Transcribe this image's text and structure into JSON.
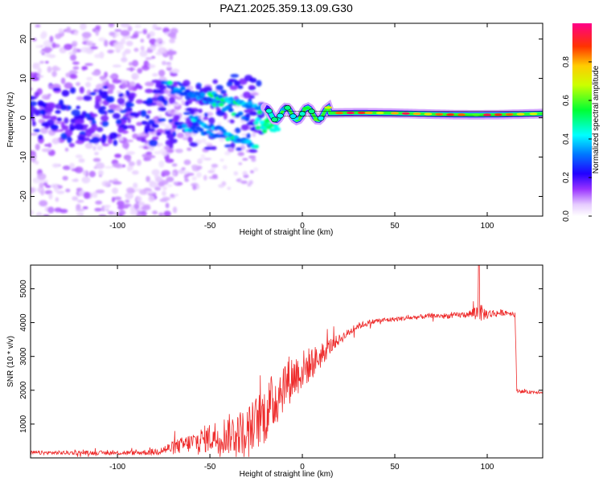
{
  "figure_title": "PAZ1.2025.359.13.09.G30",
  "colors": {
    "snr_line": "#ee2b2b",
    "axes": "#000000",
    "background": "#ffffff"
  },
  "chart_data": [
    {
      "type": "heatmap",
      "title": "PAZ1.2025.359.13.09.G30",
      "xlabel": "Height of straight line (km)",
      "ylabel": "Frequency (Hz)",
      "xlim": [
        -147,
        130
      ],
      "ylim": [
        -25,
        24
      ],
      "x_ticks": [
        -100,
        -50,
        0,
        50,
        100
      ],
      "y_ticks": [
        -20,
        -10,
        0,
        10,
        20
      ],
      "x_tick_labels": [
        "-100",
        "-50",
        "0",
        "50",
        "100"
      ],
      "y_tick_labels": [
        "-20",
        "-10",
        "0",
        "10",
        "20"
      ],
      "colorbar": {
        "label": "Normalized spectral amplitude",
        "range": [
          0,
          1
        ],
        "ticks": [
          0.0,
          0.2,
          0.4,
          0.6,
          0.8
        ],
        "tick_labels": [
          "0.0",
          "0.2",
          "0.4",
          "0.6",
          "0.8"
        ],
        "colormap": "rainbow (white-violet-blue-cyan-green-yellow-red-magenta)"
      },
      "features": [
        {
          "name": "scattered_noise",
          "x_range": [
            -147,
            -70
          ],
          "y_range": [
            -25,
            24
          ],
          "amplitude": 0.05
        },
        {
          "name": "converging_tracks",
          "x_range": [
            -70,
            -20
          ],
          "y_range": [
            -8,
            8
          ],
          "amplitude": 0.2
        },
        {
          "name": "main_carrier_line",
          "x_range": [
            -20,
            130
          ],
          "y_center": 1,
          "amplitude": 0.9
        }
      ]
    },
    {
      "type": "line",
      "xlabel": "Height of straight line (km)",
      "ylabel": "SNR (10 * v/v)",
      "xlim": [
        -147,
        130
      ],
      "ylim": [
        0,
        5700
      ],
      "x_ticks": [
        -100,
        -50,
        0,
        50,
        100
      ],
      "y_ticks": [
        1000,
        2000,
        3000,
        4000,
        5000
      ],
      "x_tick_labels": [
        "-100",
        "-50",
        "0",
        "50",
        "100"
      ],
      "y_tick_labels": [
        "1000",
        "2000",
        "3000",
        "4000",
        "5000"
      ],
      "series": [
        {
          "name": "SNR",
          "x": [
            -147,
            -130,
            -110,
            -90,
            -80,
            -70,
            -60,
            -50,
            -40,
            -30,
            -20,
            -15,
            -10,
            -5,
            0,
            5,
            10,
            15,
            20,
            25,
            30,
            40,
            50,
            60,
            70,
            80,
            90,
            95,
            100,
            110,
            115,
            116,
            120,
            130
          ],
          "values": [
            150,
            150,
            150,
            150,
            180,
            300,
            450,
            600,
            700,
            800,
            1300,
            1700,
            2200,
            2400,
            2600,
            2800,
            3000,
            3300,
            3500,
            3700,
            3900,
            4050,
            4100,
            4150,
            4200,
            4200,
            4250,
            4300,
            4250,
            4300,
            4250,
            2000,
            1950,
            1950
          ],
          "noise_amplitude": [
            60,
            60,
            60,
            70,
            100,
            200,
            300,
            450,
            600,
            700,
            900,
            900,
            800,
            700,
            600,
            500,
            350,
            250,
            150,
            120,
            100,
            80,
            70,
            70,
            70,
            80,
            100,
            300,
            150,
            80,
            80,
            60,
            50,
            50
          ]
        }
      ]
    }
  ]
}
